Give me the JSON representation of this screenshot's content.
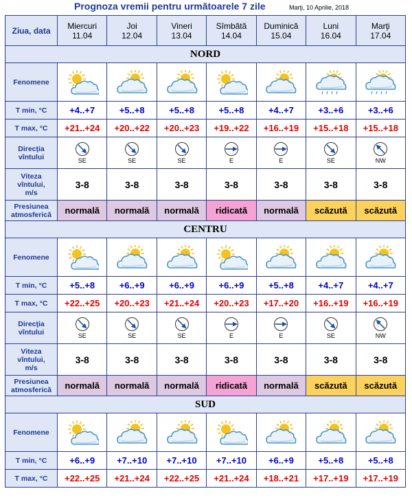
{
  "title": "Prognoza vremii pentru următoarele 7 zile",
  "issued": "Marţi, 10 Aprilie, 2018",
  "header_label": "Ziua, data",
  "days": [
    {
      "name": "Miercuri",
      "date": "11.04"
    },
    {
      "name": "Joi",
      "date": "12.04"
    },
    {
      "name": "Vineri",
      "date": "13.04"
    },
    {
      "name": "Sîmbătă",
      "date": "14.04"
    },
    {
      "name": "Duminică",
      "date": "15.04"
    },
    {
      "name": "Luni",
      "date": "16.04"
    },
    {
      "name": "Marţi",
      "date": "17.04"
    }
  ],
  "row_labels": {
    "phenomena": "Fenomene",
    "tmin": "T min, °C",
    "tmax": "T max, °C",
    "wind_dir_1": "Direcţia",
    "wind_dir_2": "vîntului",
    "wind_speed_1": "Viteza",
    "wind_speed_2": "vîntului,",
    "wind_speed_3": "m/s",
    "pressure_1": "Presiunea",
    "pressure_2": "atmosferică"
  },
  "colors": {
    "normal": "#ddc9e2",
    "ridicata": "#f5a3d4",
    "scazuta": "#fcd25c",
    "sun": "#f6c21c",
    "cloud": "#4b95c8",
    "needle": "#1f4fa3"
  },
  "regions": [
    {
      "name": "NORD",
      "phenomena": [
        "sun-cloud-icon",
        "cloud-sun-icon",
        "cloud-sun-icon",
        "sun-cloud-icon",
        "cloud-sun-icon",
        "cloud-rain-icon",
        "cloud-rain-icon"
      ],
      "tmin": [
        "+4..+7",
        "+5..+8",
        "+5..+8",
        "+5..+8",
        "+4..+7",
        "+3..+6",
        "+3..+6"
      ],
      "tmax": [
        "+21..+24",
        "+20..+22",
        "+20..+23",
        "+19..+22",
        "+16..+19",
        "+15..+18",
        "+15..+18"
      ],
      "wind_dir": [
        "SE",
        "SE",
        "SE",
        "E",
        "E",
        "SE",
        "NW"
      ],
      "wind_speed": [
        "3-8",
        "3-8",
        "3-8",
        "3-8",
        "3-8",
        "3-8",
        "3-8"
      ],
      "pressure": [
        "normală",
        "normală",
        "normală",
        "ridicată",
        "normală",
        "scăzută",
        "scăzută"
      ],
      "pressure_type": [
        "normal",
        "normal",
        "normal",
        "ridicata",
        "normal",
        "scazuta",
        "scazuta"
      ]
    },
    {
      "name": "CENTRU",
      "phenomena": [
        "sun-cloud-icon",
        "cloud-sun-icon",
        "cloud-sun-icon",
        "sun-cloud-icon",
        "cloud-sun-icon",
        "cloud-sun-icon",
        "cloud-sun-icon"
      ],
      "tmin": [
        "+5..+8",
        "+6..+9",
        "+6..+9",
        "+6..+9",
        "+5..+8",
        "+4..+7",
        "+4..+7"
      ],
      "tmax": [
        "+22..+25",
        "+20..+23",
        "+21..+24",
        "+20..+23",
        "+17..+20",
        "+16..+19",
        "+16..+19"
      ],
      "wind_dir": [
        "SE",
        "SE",
        "SE",
        "E",
        "E",
        "SE",
        "NW"
      ],
      "wind_speed": [
        "3-8",
        "3-8",
        "3-8",
        "3-8",
        "3-8",
        "3-8",
        "3-8"
      ],
      "pressure": [
        "normală",
        "normală",
        "normală",
        "ridicată",
        "normală",
        "scăzută",
        "scăzută"
      ],
      "pressure_type": [
        "normal",
        "normal",
        "normal",
        "ridicata",
        "normal",
        "scazuta",
        "scazuta"
      ]
    },
    {
      "name": "SUD",
      "phenomena": [
        "sun-cloud-icon",
        "cloud-sun-icon",
        "cloud-sun-icon",
        "sun-cloud-icon",
        "cloud-sun-icon",
        "cloud-sun-icon",
        "cloud-sun-icon"
      ],
      "tmin": [
        "+6..+9",
        "+7..+10",
        "+7..+10",
        "+7..+10",
        "+6..+9",
        "+5..+8",
        "+5..+8"
      ],
      "tmax": [
        "+22..+25",
        "+21..+24",
        "+22..+25",
        "+21..+24",
        "+18..+21",
        "+17..+19",
        "+17..+19"
      ]
    }
  ]
}
